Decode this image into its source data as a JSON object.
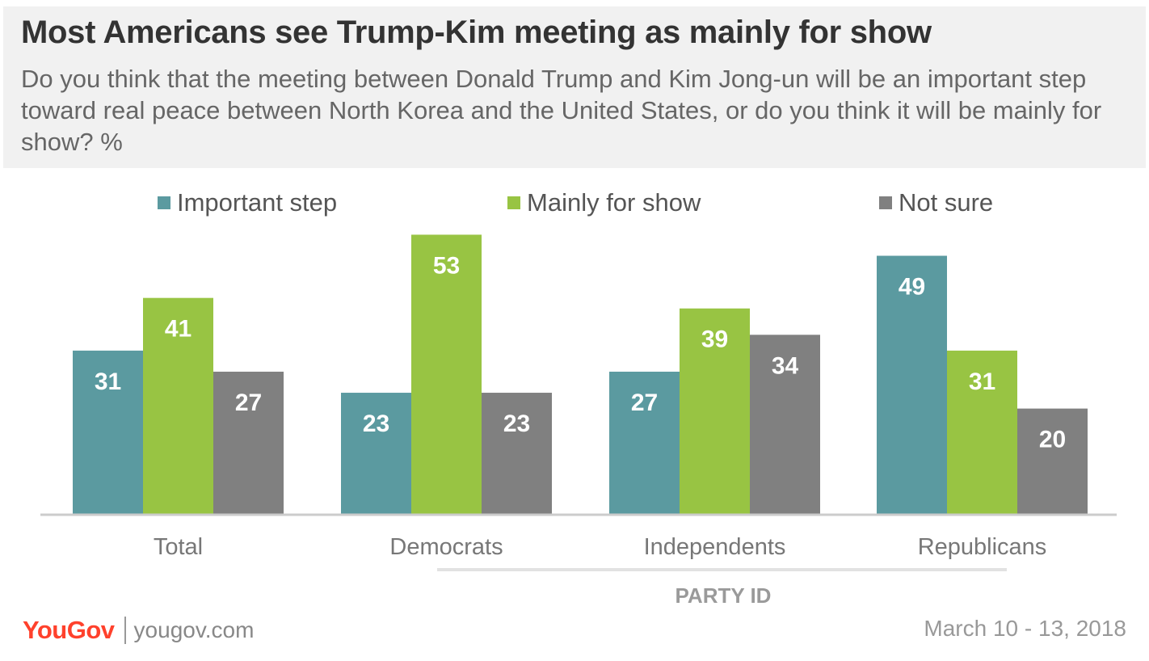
{
  "header": {
    "title": "Most Americans see Trump-Kim meeting as mainly for show",
    "subtitle": "Do you think that the meeting between Donald Trump and Kim Jong-un will be an important step toward real peace between North Korea and the United States, or do you think it will be mainly for show? %"
  },
  "colors": {
    "important_step": "#5b9aa0",
    "mainly_for_show": "#98c443",
    "not_sure": "#808080",
    "header_bg": "#f1f1f1",
    "brand": "#ff412c"
  },
  "chart_data": {
    "type": "bar",
    "categories": [
      "Total",
      "Democrats",
      "Independents",
      "Republicans"
    ],
    "series": [
      {
        "name": "Important step",
        "values": [
          31,
          23,
          27,
          49
        ]
      },
      {
        "name": "Mainly for show",
        "values": [
          41,
          53,
          39,
          31
        ]
      },
      {
        "name": "Not sure",
        "values": [
          27,
          23,
          34,
          20
        ]
      }
    ],
    "group_label": "PARTY ID",
    "ylim": [
      0,
      60
    ],
    "grid": false,
    "legend": "top",
    "data_labels": true
  },
  "footer": {
    "brand": "YouGov",
    "site": "yougov.com",
    "date": "March 10 - 13, 2018"
  }
}
